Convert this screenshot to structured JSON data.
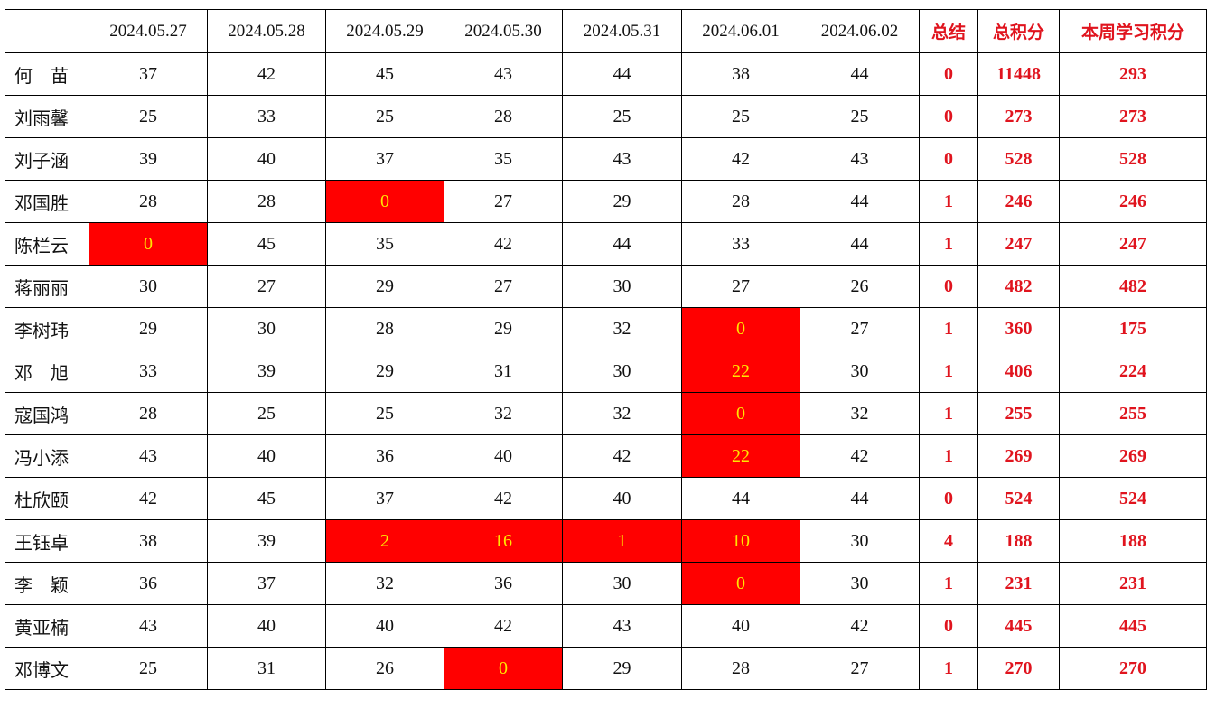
{
  "table": {
    "columns": [
      "2024.05.27",
      "2024.05.28",
      "2024.05.29",
      "2024.05.30",
      "2024.05.31",
      "2024.06.01",
      "2024.06.02",
      "总结",
      "总积分",
      "本周学习积分"
    ],
    "rows": [
      {
        "name": "何　苗",
        "scores": [
          37,
          42,
          45,
          43,
          44,
          38,
          44
        ],
        "summary": 0,
        "total": 11448,
        "weekly": 293
      },
      {
        "name": "刘雨馨",
        "scores": [
          25,
          33,
          25,
          28,
          25,
          25,
          25
        ],
        "summary": 0,
        "total": 273,
        "weekly": 273
      },
      {
        "name": "刘子涵",
        "scores": [
          39,
          40,
          37,
          35,
          43,
          42,
          43
        ],
        "summary": 0,
        "total": 528,
        "weekly": 528
      },
      {
        "name": "邓国胜",
        "scores": [
          28,
          28,
          {
            "value": 0,
            "highlight": true
          },
          27,
          29,
          28,
          44
        ],
        "summary": 1,
        "total": 246,
        "weekly": 246
      },
      {
        "name": "陈栏云",
        "scores": [
          {
            "value": 0,
            "highlight": true
          },
          45,
          35,
          42,
          44,
          33,
          44
        ],
        "summary": 1,
        "total": 247,
        "weekly": 247
      },
      {
        "name": "蒋丽丽",
        "scores": [
          30,
          27,
          29,
          27,
          30,
          27,
          26
        ],
        "summary": 0,
        "total": 482,
        "weekly": 482
      },
      {
        "name": "李树玮",
        "scores": [
          29,
          30,
          28,
          29,
          32,
          {
            "value": 0,
            "highlight": true
          },
          27
        ],
        "summary": 1,
        "total": 360,
        "weekly": 175
      },
      {
        "name": "邓　旭",
        "scores": [
          33,
          39,
          29,
          31,
          30,
          {
            "value": 22,
            "highlight": true
          },
          30
        ],
        "summary": 1,
        "total": 406,
        "weekly": 224
      },
      {
        "name": "寇国鸿",
        "scores": [
          28,
          25,
          25,
          32,
          32,
          {
            "value": 0,
            "highlight": true
          },
          32
        ],
        "summary": 1,
        "total": 255,
        "weekly": 255
      },
      {
        "name": "冯小添",
        "scores": [
          43,
          40,
          36,
          40,
          42,
          {
            "value": 22,
            "highlight": true
          },
          42
        ],
        "summary": 1,
        "total": 269,
        "weekly": 269
      },
      {
        "name": "杜欣颐",
        "scores": [
          42,
          45,
          37,
          42,
          40,
          44,
          44
        ],
        "summary": 0,
        "total": 524,
        "weekly": 524
      },
      {
        "name": "王钰卓",
        "scores": [
          38,
          39,
          {
            "value": 2,
            "highlight": true
          },
          {
            "value": 16,
            "highlight": true
          },
          {
            "value": 1,
            "highlight": true
          },
          {
            "value": 10,
            "highlight": true
          },
          30
        ],
        "summary": 4,
        "total": 188,
        "weekly": 188
      },
      {
        "name": "李　颖",
        "scores": [
          36,
          37,
          32,
          36,
          30,
          {
            "value": 0,
            "highlight": true
          },
          30
        ],
        "summary": 1,
        "total": 231,
        "weekly": 231
      },
      {
        "name": "黄亚楠",
        "scores": [
          43,
          40,
          40,
          42,
          43,
          40,
          42
        ],
        "summary": 0,
        "total": 445,
        "weekly": 445
      },
      {
        "name": "邓博文",
        "scores": [
          25,
          31,
          26,
          {
            "value": 0,
            "highlight": true
          },
          29,
          28,
          27
        ],
        "summary": 1,
        "total": 270,
        "weekly": 270
      }
    ]
  }
}
